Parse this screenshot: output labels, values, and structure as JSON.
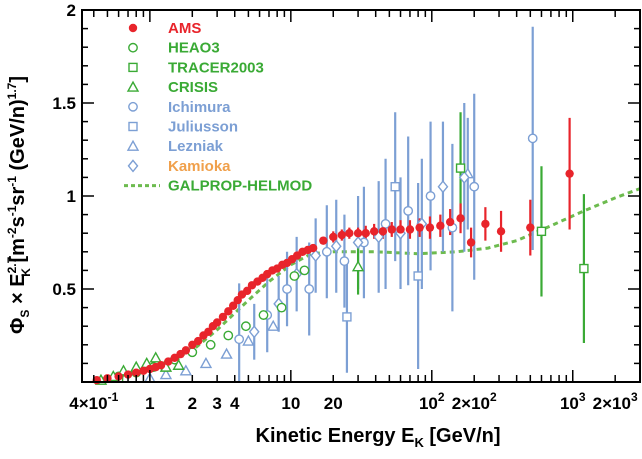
{
  "chart_data": {
    "type": "scatter",
    "title": "",
    "xlabel": {
      "main": "Kinetic Energy E",
      "sub": "K",
      "unit": " [GeV/n]"
    },
    "ylabel": {
      "p1": "Φ",
      "p1sub": "S",
      "p2": " × E",
      "p2sup": "2.7",
      "p2sub": "K",
      "p3": " [m",
      "s1": "-2",
      "p4": "s",
      "s2": "-1",
      "p5": "sr",
      "s3": "-1",
      "p6": " (GeV/n)",
      "s4": "1.7",
      "p7": "]"
    },
    "x_scale": "log",
    "xlim": [
      0.33,
      3000
    ],
    "ylim": [
      0,
      2
    ],
    "grid": false,
    "legend_position": "top-left",
    "x_ticks": [
      {
        "v": 0.4,
        "label": "4×10",
        "sup": "-1"
      },
      {
        "v": 1,
        "label": "1"
      },
      {
        "v": 2,
        "label": "2"
      },
      {
        "v": 3,
        "label": "3"
      },
      {
        "v": 4,
        "label": "4"
      },
      {
        "v": 10,
        "label": "10"
      },
      {
        "v": 20,
        "label": "20"
      },
      {
        "v": 100,
        "label": "10",
        "sup": "2"
      },
      {
        "v": 200,
        "label": "2×10",
        "sup": "2"
      },
      {
        "v": 1000,
        "label": "10",
        "sup": "3"
      },
      {
        "v": 2000,
        "label": "2×10",
        "sup": "3"
      }
    ],
    "y_ticks": [
      {
        "v": 0.5,
        "label": "0.5"
      },
      {
        "v": 1,
        "label": "1"
      },
      {
        "v": 1.5,
        "label": "1.5"
      },
      {
        "v": 2,
        "label": "2"
      }
    ],
    "series": [
      {
        "name": "AMS",
        "color": "#e8242b",
        "marker": "filled-circle",
        "points": [
          {
            "x": 0.42,
            "y": 0.01
          },
          {
            "x": 0.5,
            "y": 0.02
          },
          {
            "x": 0.6,
            "y": 0.03
          },
          {
            "x": 0.7,
            "y": 0.04
          },
          {
            "x": 0.8,
            "y": 0.05
          },
          {
            "x": 0.9,
            "y": 0.06
          },
          {
            "x": 1.0,
            "y": 0.07
          },
          {
            "x": 1.1,
            "y": 0.08
          },
          {
            "x": 1.2,
            "y": 0.09
          },
          {
            "x": 1.35,
            "y": 0.11
          },
          {
            "x": 1.5,
            "y": 0.13
          },
          {
            "x": 1.65,
            "y": 0.15
          },
          {
            "x": 1.8,
            "y": 0.17
          },
          {
            "x": 2.0,
            "y": 0.2
          },
          {
            "x": 2.2,
            "y": 0.22
          },
          {
            "x": 2.4,
            "y": 0.25
          },
          {
            "x": 2.6,
            "y": 0.27
          },
          {
            "x": 2.8,
            "y": 0.3
          },
          {
            "x": 3.0,
            "y": 0.32
          },
          {
            "x": 3.3,
            "y": 0.35
          },
          {
            "x": 3.6,
            "y": 0.38
          },
          {
            "x": 3.9,
            "y": 0.41
          },
          {
            "x": 4.2,
            "y": 0.44
          },
          {
            "x": 4.5,
            "y": 0.47
          },
          {
            "x": 4.9,
            "y": 0.49
          },
          {
            "x": 5.3,
            "y": 0.52
          },
          {
            "x": 5.8,
            "y": 0.54
          },
          {
            "x": 6.3,
            "y": 0.56
          },
          {
            "x": 6.8,
            "y": 0.58
          },
          {
            "x": 7.4,
            "y": 0.6
          },
          {
            "x": 8.0,
            "y": 0.61
          },
          {
            "x": 8.7,
            "y": 0.63
          },
          {
            "x": 9.4,
            "y": 0.64
          },
          {
            "x": 10.2,
            "y": 0.66
          },
          {
            "x": 11.1,
            "y": 0.68
          },
          {
            "x": 12.1,
            "y": 0.7
          },
          {
            "x": 13.2,
            "y": 0.71
          },
          {
            "x": 14.4,
            "y": 0.72
          },
          {
            "x": 17,
            "y": 0.76,
            "err": 0.02
          },
          {
            "x": 20,
            "y": 0.78,
            "err": 0.03
          },
          {
            "x": 23,
            "y": 0.79,
            "err": 0.03
          },
          {
            "x": 26,
            "y": 0.8,
            "err": 0.03
          },
          {
            "x": 30,
            "y": 0.8,
            "err": 0.03
          },
          {
            "x": 34,
            "y": 0.8,
            "err": 0.04
          },
          {
            "x": 39,
            "y": 0.81,
            "err": 0.04
          },
          {
            "x": 45,
            "y": 0.81,
            "err": 0.04
          },
          {
            "x": 52,
            "y": 0.82,
            "err": 0.04
          },
          {
            "x": 60,
            "y": 0.82,
            "err": 0.05
          },
          {
            "x": 70,
            "y": 0.82,
            "err": 0.05
          },
          {
            "x": 82,
            "y": 0.83,
            "err": 0.05
          },
          {
            "x": 97,
            "y": 0.83,
            "err": 0.06
          },
          {
            "x": 115,
            "y": 0.84,
            "err": 0.06
          },
          {
            "x": 135,
            "y": 0.86,
            "err": 0.07
          },
          {
            "x": 160,
            "y": 0.88,
            "err": 0.08
          },
          {
            "x": 190,
            "y": 0.75,
            "err": 0.08
          },
          {
            "x": 240,
            "y": 0.85,
            "err": 0.09
          },
          {
            "x": 310,
            "y": 0.81,
            "err": 0.11
          },
          {
            "x": 500,
            "y": 0.83,
            "err": 0.15
          },
          {
            "x": 950,
            "y": 1.12,
            "err": 0.3
          }
        ]
      },
      {
        "name": "HEAO3",
        "color": "#3aaa35",
        "marker": "open-circle",
        "points": [
          {
            "x": 0.6,
            "y": 0.03
          },
          {
            "x": 0.8,
            "y": 0.05
          },
          {
            "x": 1.06,
            "y": 0.08
          },
          {
            "x": 1.5,
            "y": 0.12
          },
          {
            "x": 2.0,
            "y": 0.16
          },
          {
            "x": 2.7,
            "y": 0.2
          },
          {
            "x": 3.6,
            "y": 0.25
          },
          {
            "x": 4.8,
            "y": 0.3
          },
          {
            "x": 6.4,
            "y": 0.36
          },
          {
            "x": 8.6,
            "y": 0.4
          },
          {
            "x": 10.6,
            "y": 0.57
          },
          {
            "x": 12.5,
            "y": 0.6
          }
        ]
      },
      {
        "name": "TRACER2003",
        "color": "#3aaa35",
        "marker": "open-square",
        "points": [
          {
            "x": 0.6,
            "y": 0.02
          },
          {
            "x": 160,
            "y": 1.15,
            "err": 0.3
          },
          {
            "x": 600,
            "y": 0.81,
            "err": 0.35
          },
          {
            "x": 1200,
            "y": 0.61,
            "err": 0.4
          }
        ]
      },
      {
        "name": "CRISIS",
        "color": "#3aaa35",
        "marker": "open-triangle",
        "points": [
          {
            "x": 0.45,
            "y": 0.01
          },
          {
            "x": 0.55,
            "y": 0.03
          },
          {
            "x": 0.65,
            "y": 0.06
          },
          {
            "x": 0.8,
            "y": 0.08
          },
          {
            "x": 0.95,
            "y": 0.1
          },
          {
            "x": 1.1,
            "y": 0.13
          },
          {
            "x": 1.3,
            "y": 0.08
          },
          {
            "x": 1.6,
            "y": 0.09
          },
          {
            "x": 30,
            "y": 0.62,
            "err": 0.15
          }
        ]
      },
      {
        "name": "Ichimura",
        "color": "#7c9fd4",
        "marker": "open-circle",
        "points": [
          {
            "x": 4.3,
            "y": 0.23,
            "err": 0.3
          },
          {
            "x": 6.8,
            "y": 0.36,
            "err": 0.2
          },
          {
            "x": 9.4,
            "y": 0.5,
            "err": 0.2
          },
          {
            "x": 13.5,
            "y": 0.5,
            "err": 0.25
          },
          {
            "x": 18,
            "y": 0.7,
            "err": 0.25
          },
          {
            "x": 24,
            "y": 0.65,
            "err": 0.25
          },
          {
            "x": 33,
            "y": 0.75,
            "err": 0.3
          },
          {
            "x": 47,
            "y": 0.85,
            "err": 0.35
          },
          {
            "x": 68,
            "y": 0.92,
            "err": 0.4
          },
          {
            "x": 98,
            "y": 1.0,
            "err": 0.4
          },
          {
            "x": 140,
            "y": 0.83,
            "err": 0.45
          },
          {
            "x": 200,
            "y": 1.05,
            "err": 0.5
          },
          {
            "x": 520,
            "y": 1.31,
            "err": 0.6
          }
        ]
      },
      {
        "name": "Juliusson",
        "color": "#7c9fd4",
        "marker": "open-square",
        "points": [
          {
            "x": 25,
            "y": 0.35,
            "err": 0.3
          },
          {
            "x": 55,
            "y": 1.05,
            "err": 0.4
          },
          {
            "x": 80,
            "y": 0.57,
            "err": 0.5
          }
        ]
      },
      {
        "name": "Lezniak",
        "color": "#7c9fd4",
        "marker": "open-triangle",
        "points": [
          {
            "x": 1.0,
            "y": 0.02
          },
          {
            "x": 1.3,
            "y": 0.04
          },
          {
            "x": 1.8,
            "y": 0.06
          },
          {
            "x": 2.5,
            "y": 0.1
          },
          {
            "x": 3.5,
            "y": 0.15
          },
          {
            "x": 5.0,
            "y": 0.22
          },
          {
            "x": 7.5,
            "y": 0.3
          },
          {
            "x": 180,
            "y": 1.12,
            "err": 0.3
          }
        ]
      },
      {
        "name": "Kamioka",
        "color": "#7c9fd4",
        "marker": "open-diamond",
        "points": [
          {
            "x": 5.5,
            "y": 0.27,
            "err": 0.15
          },
          {
            "x": 8.2,
            "y": 0.42,
            "err": 0.15
          },
          {
            "x": 11,
            "y": 0.58,
            "err": 0.2
          },
          {
            "x": 15,
            "y": 0.68,
            "err": 0.2
          },
          {
            "x": 21,
            "y": 0.73,
            "err": 0.25
          },
          {
            "x": 30,
            "y": 0.75,
            "err": 0.25
          },
          {
            "x": 42,
            "y": 0.78,
            "err": 0.3
          },
          {
            "x": 60,
            "y": 0.8,
            "err": 0.3
          },
          {
            "x": 85,
            "y": 0.85,
            "err": 0.35
          },
          {
            "x": 120,
            "y": 1.05,
            "err": 0.35
          },
          {
            "x": 170,
            "y": 1.1,
            "err": 0.4
          }
        ]
      }
    ],
    "model": {
      "name": "GALPROP-HELMOD",
      "color": "#6dbb4f",
      "style": "dashed",
      "points": [
        {
          "x": 0.4,
          "y": 0.01
        },
        {
          "x": 0.6,
          "y": 0.03
        },
        {
          "x": 1,
          "y": 0.07
        },
        {
          "x": 2,
          "y": 0.17
        },
        {
          "x": 3,
          "y": 0.28
        },
        {
          "x": 4,
          "y": 0.37
        },
        {
          "x": 5,
          "y": 0.44
        },
        {
          "x": 7,
          "y": 0.54
        },
        {
          "x": 10,
          "y": 0.63
        },
        {
          "x": 14,
          "y": 0.69
        },
        {
          "x": 20,
          "y": 0.7
        },
        {
          "x": 40,
          "y": 0.7
        },
        {
          "x": 80,
          "y": 0.69
        },
        {
          "x": 150,
          "y": 0.7
        },
        {
          "x": 250,
          "y": 0.72
        },
        {
          "x": 400,
          "y": 0.76
        },
        {
          "x": 700,
          "y": 0.84
        },
        {
          "x": 1200,
          "y": 0.92
        },
        {
          "x": 2000,
          "y": 0.99
        },
        {
          "x": 3000,
          "y": 1.04
        }
      ]
    },
    "legend": [
      {
        "label": "AMS",
        "color": "#e8242b",
        "marker": "filled-circle",
        "text_color": "#e8242b"
      },
      {
        "label": "HEAO3",
        "color": "#3aaa35",
        "marker": "open-circle",
        "text_color": "#3aaa35"
      },
      {
        "label": "TRACER2003",
        "color": "#3aaa35",
        "marker": "open-square",
        "text_color": "#3aaa35"
      },
      {
        "label": "CRISIS",
        "color": "#3aaa35",
        "marker": "open-triangle",
        "text_color": "#3aaa35"
      },
      {
        "label": "Ichimura",
        "color": "#7c9fd4",
        "marker": "open-circle",
        "text_color": "#7c9fd4"
      },
      {
        "label": "Juliusson",
        "color": "#7c9fd4",
        "marker": "open-square",
        "text_color": "#7c9fd4"
      },
      {
        "label": "Lezniak",
        "color": "#7c9fd4",
        "marker": "open-triangle",
        "text_color": "#7c9fd4"
      },
      {
        "label": "Kamioka",
        "color": "#7c9fd4",
        "marker": "open-diamond",
        "text_color": "#f0a04b"
      },
      {
        "label": "GALPROP-HELMOD",
        "color": "#6dbb4f",
        "marker": "dashed-line",
        "text_color": "#3aaa35"
      }
    ]
  }
}
